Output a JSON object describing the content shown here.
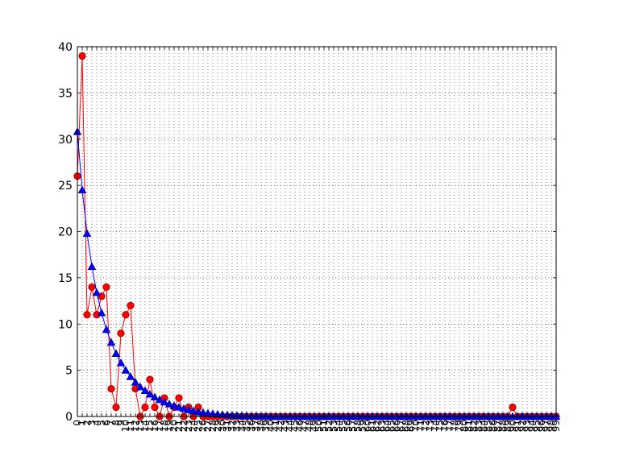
{
  "chart_data": {
    "type": "line",
    "title": "",
    "xlabel": "",
    "ylabel": "",
    "xlim": [
      0,
      99
    ],
    "ylim": [
      0,
      40
    ],
    "grid": true,
    "grid_style": "dotted",
    "legend": "none",
    "x": [
      0,
      1,
      2,
      3,
      4,
      5,
      6,
      7,
      8,
      9,
      10,
      11,
      12,
      13,
      14,
      15,
      16,
      17,
      18,
      19,
      20,
      21,
      22,
      23,
      24,
      25,
      26,
      27,
      28,
      29,
      30,
      31,
      32,
      33,
      34,
      35,
      36,
      37,
      38,
      39,
      40,
      41,
      42,
      43,
      44,
      45,
      46,
      47,
      48,
      49,
      50,
      51,
      52,
      53,
      54,
      55,
      56,
      57,
      58,
      59,
      60,
      61,
      62,
      63,
      64,
      65,
      66,
      67,
      68,
      69,
      70,
      71,
      72,
      73,
      74,
      75,
      76,
      77,
      78,
      79,
      80,
      81,
      82,
      83,
      84,
      85,
      86,
      87,
      88,
      89,
      90,
      91,
      92,
      93,
      94,
      95,
      96,
      97,
      98,
      99
    ],
    "yticks": [
      0,
      5,
      10,
      15,
      20,
      25,
      30,
      35,
      40
    ],
    "series": [
      {
        "name": "",
        "color": "#ff0000",
        "edge_color": "#8b0000",
        "marker": "circle",
        "values": [
          26,
          39,
          11,
          14,
          11,
          13,
          14,
          3,
          1,
          9,
          11,
          12,
          3,
          0,
          1,
          4,
          1,
          0,
          2,
          0,
          1,
          2,
          0,
          1,
          0,
          1,
          0,
          0,
          0,
          0,
          0,
          0,
          0,
          0,
          0,
          0,
          0,
          0,
          0,
          0,
          0,
          0,
          0,
          0,
          0,
          0,
          0,
          0,
          0,
          0,
          0,
          0,
          0,
          0,
          0,
          0,
          0,
          0,
          0,
          0,
          0,
          0,
          0,
          0,
          0,
          0,
          0,
          0,
          0,
          0,
          0,
          0,
          0,
          0,
          0,
          0,
          0,
          0,
          0,
          0,
          0,
          0,
          0,
          0,
          0,
          0,
          0,
          0,
          0,
          0,
          1,
          0,
          0,
          0,
          0,
          0,
          0,
          0,
          0,
          0
        ]
      },
      {
        "name": "",
        "color": "#0000ff",
        "edge_color": "#00008b",
        "marker": "triangle",
        "values": [
          30.8,
          24.5,
          19.8,
          16.2,
          13.4,
          11.2,
          9.4,
          8.0,
          6.8,
          5.8,
          5.0,
          4.3,
          3.7,
          3.2,
          2.8,
          2.4,
          2.1,
          1.8,
          1.55,
          1.35,
          1.15,
          1.0,
          0.85,
          0.72,
          0.6,
          0.5,
          0.42,
          0.35,
          0.29,
          0.24,
          0.2,
          0.16,
          0.13,
          0.1,
          0.08,
          0.06,
          0.05,
          0.04,
          0.03,
          0.02,
          0,
          0,
          0,
          0,
          0,
          0,
          0,
          0,
          0,
          0,
          0,
          0,
          0,
          0,
          0,
          0,
          0,
          0,
          0,
          0,
          0,
          0,
          0,
          0,
          0,
          0,
          0,
          0,
          0,
          0,
          0,
          0,
          0,
          0,
          0,
          0,
          0,
          0,
          0,
          0,
          0,
          0,
          0,
          0,
          0,
          0,
          0,
          0,
          0,
          0,
          0,
          0,
          0,
          0,
          0,
          0,
          0,
          0,
          0,
          0
        ]
      }
    ]
  }
}
